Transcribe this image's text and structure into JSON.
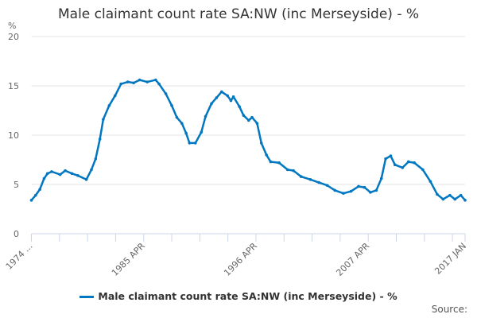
{
  "chart_data": {
    "type": "line",
    "title": "Male claimant count rate SA:NW (inc Merseyside) - %",
    "ylabel": "%",
    "xlabel": "",
    "ylim": [
      0,
      20
    ],
    "yticks": [
      0,
      5,
      10,
      15,
      20
    ],
    "xlim": [
      "1974-04",
      "2017-01"
    ],
    "xtick_labels": [
      "1974 ...",
      "1985 APR",
      "1996 APR",
      "2007 APR",
      "2017 JAN"
    ],
    "grid": true,
    "legend_placement": "bottom",
    "color": "#0077c0",
    "series": [
      {
        "name": "Male claimant count rate SA:NW (inc Merseyside) - %",
        "x": [
          "1974-04",
          "1974-09",
          "1975-02",
          "1975-07",
          "1975-11",
          "1976-04",
          "1977-02",
          "1977-08",
          "1978-04",
          "1978-11",
          "1979-09",
          "1980-03",
          "1980-08",
          "1981-01",
          "1981-05",
          "1981-12",
          "1982-07",
          "1983-02",
          "1983-10",
          "1984-05",
          "1984-12",
          "1985-09",
          "1986-07",
          "1986-11",
          "1987-07",
          "1988-02",
          "1988-08",
          "1989-02",
          "1989-07",
          "1989-11",
          "1990-06",
          "1991-01",
          "1991-06",
          "1992-01",
          "1992-07",
          "1993-01",
          "1993-08",
          "1993-12",
          "1994-03",
          "1994-10",
          "1995-03",
          "1995-09",
          "1996-01",
          "1996-07",
          "1996-12",
          "1997-06",
          "1997-11",
          "1998-09",
          "1999-07",
          "2000-02",
          "2000-11",
          "2001-10",
          "2002-08",
          "2003-06",
          "2004-03",
          "2005-01",
          "2005-10",
          "2006-07",
          "2007-02",
          "2007-09",
          "2008-04",
          "2008-10",
          "2009-03",
          "2009-09",
          "2010-02",
          "2010-11",
          "2011-06",
          "2012-01",
          "2012-11",
          "2013-08",
          "2014-04",
          "2014-11",
          "2015-07",
          "2016-01",
          "2016-08",
          "2017-01"
        ],
        "values": [
          3.4,
          3.9,
          4.5,
          5.6,
          6.1,
          6.3,
          6.0,
          6.4,
          6.1,
          5.9,
          5.5,
          6.5,
          7.6,
          9.6,
          11.6,
          13.0,
          14.0,
          15.2,
          15.4,
          15.3,
          15.6,
          15.4,
          15.6,
          15.2,
          14.2,
          13.0,
          11.8,
          11.2,
          10.2,
          9.2,
          9.2,
          10.3,
          11.9,
          13.2,
          13.8,
          14.4,
          14.0,
          13.5,
          13.9,
          12.9,
          12.0,
          11.5,
          11.8,
          11.2,
          9.2,
          8.0,
          7.3,
          7.2,
          6.5,
          6.4,
          5.8,
          5.5,
          5.2,
          4.9,
          4.4,
          4.1,
          4.3,
          4.8,
          4.7,
          4.2,
          4.4,
          5.6,
          7.6,
          7.9,
          7.0,
          6.7,
          7.3,
          7.2,
          6.5,
          5.3,
          4.0,
          3.5,
          3.9,
          3.5,
          3.9,
          3.4
        ]
      }
    ]
  },
  "legend": {
    "label": "Male claimant count rate SA:NW (inc Merseyside) - %"
  },
  "source": "Source:"
}
